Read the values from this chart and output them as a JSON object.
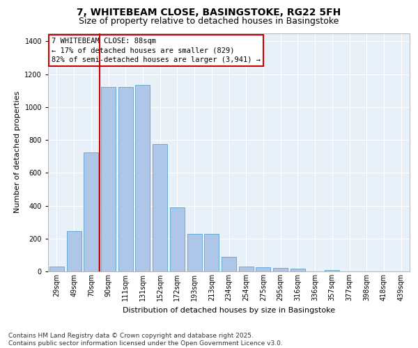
{
  "title_line1": "7, WHITEBEAM CLOSE, BASINGSTOKE, RG22 5FH",
  "title_line2": "Size of property relative to detached houses in Basingstoke",
  "xlabel": "Distribution of detached houses by size in Basingstoke",
  "ylabel": "Number of detached properties",
  "categories": [
    "29sqm",
    "49sqm",
    "70sqm",
    "90sqm",
    "111sqm",
    "131sqm",
    "152sqm",
    "172sqm",
    "193sqm",
    "213sqm",
    "234sqm",
    "254sqm",
    "275sqm",
    "295sqm",
    "316sqm",
    "336sqm",
    "357sqm",
    "377sqm",
    "398sqm",
    "418sqm",
    "439sqm"
  ],
  "values": [
    30,
    245,
    725,
    1120,
    1120,
    1135,
    775,
    390,
    230,
    230,
    90,
    30,
    25,
    20,
    15,
    0,
    10,
    0,
    0,
    0,
    0
  ],
  "bar_color": "#aec6e8",
  "bar_edge_color": "#6aaad4",
  "vline_color": "#cc0000",
  "annotation_text": "7 WHITEBEAM CLOSE: 88sqm\n← 17% of detached houses are smaller (829)\n82% of semi-detached houses are larger (3,941) →",
  "annotation_box_color": "#cc0000",
  "ylim": [
    0,
    1450
  ],
  "yticks": [
    0,
    200,
    400,
    600,
    800,
    1000,
    1200,
    1400
  ],
  "background_color": "#e8f0f8",
  "footer_text": "Contains HM Land Registry data © Crown copyright and database right 2025.\nContains public sector information licensed under the Open Government Licence v3.0.",
  "title_fontsize": 10,
  "subtitle_fontsize": 9,
  "axis_label_fontsize": 8,
  "tick_fontsize": 7,
  "annotation_fontsize": 7.5,
  "footer_fontsize": 6.5
}
